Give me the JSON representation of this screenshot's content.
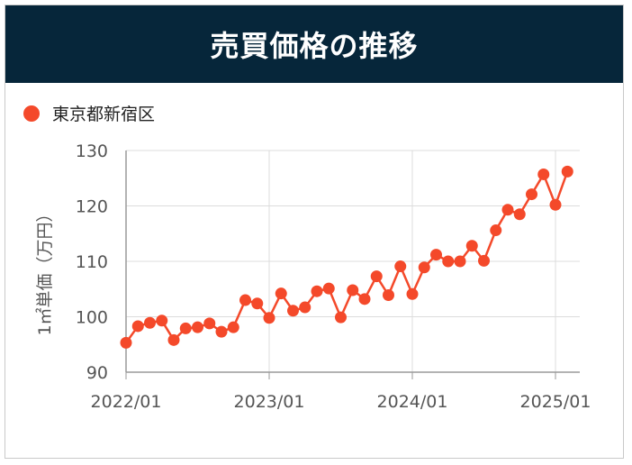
{
  "header": {
    "title": "売買価格の推移"
  },
  "colors": {
    "header_bg": "#06263a",
    "series": "#f4492a",
    "grid": "#dcdcdc",
    "axis": "#9a9a9a"
  },
  "chart_data": {
    "type": "line",
    "title": "売買価格の推移",
    "ylabel": "1㎡単価（万円）",
    "xlabel": "",
    "ylim": [
      90,
      130
    ],
    "yticks": [
      "90",
      "100",
      "110",
      "120",
      "130"
    ],
    "xticks": [
      "2022/01",
      "2023/01",
      "2024/01",
      "2025/01"
    ],
    "grid": true,
    "legend_position": "top-left",
    "x": [
      "2022/01",
      "2022/02",
      "2022/03",
      "2022/04",
      "2022/05",
      "2022/06",
      "2022/07",
      "2022/08",
      "2022/09",
      "2022/10",
      "2022/11",
      "2022/12",
      "2023/01",
      "2023/02",
      "2023/03",
      "2023/04",
      "2023/05",
      "2023/06",
      "2023/07",
      "2023/08",
      "2023/09",
      "2023/10",
      "2023/11",
      "2023/12",
      "2024/01",
      "2024/02",
      "2024/03",
      "2024/04",
      "2024/05",
      "2024/06",
      "2024/07",
      "2024/08",
      "2024/09",
      "2024/10",
      "2024/11",
      "2024/12",
      "2025/01",
      "2025/02"
    ],
    "series": [
      {
        "name": "東京都新宿区",
        "color": "#f4492a",
        "values": [
          95.3,
          98.3,
          98.9,
          99.3,
          95.8,
          97.9,
          98.1,
          98.8,
          97.3,
          98.1,
          103.0,
          102.4,
          99.8,
          104.2,
          101.1,
          101.7,
          104.6,
          105.1,
          99.9,
          104.8,
          103.2,
          107.3,
          103.9,
          109.1,
          104.1,
          108.9,
          111.2,
          110.0,
          110.0,
          112.8,
          110.1,
          115.6,
          119.3,
          118.5,
          122.1,
          125.7,
          120.2,
          126.2
        ]
      }
    ]
  }
}
